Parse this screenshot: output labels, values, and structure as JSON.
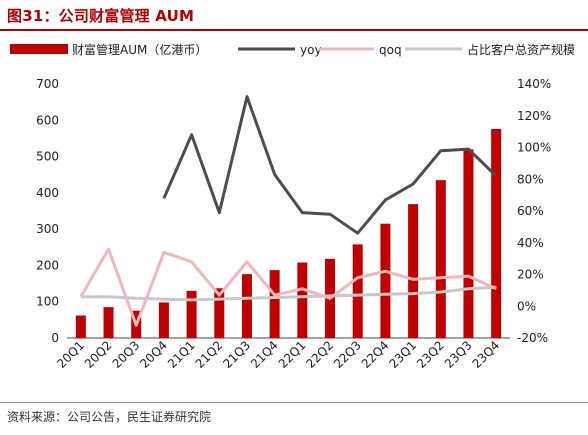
{
  "header": {
    "title": "图31：公司财富管理 AUM"
  },
  "footer": {
    "source": "资料来源：公司公告，民生证券研究院"
  },
  "colors": {
    "brand": "#b30000",
    "bar": "#c00000",
    "yoy": "#4d4d4d",
    "qoq": "#f4b6b6",
    "share": "#c8c8c8"
  },
  "chart_data": {
    "type": "bar",
    "categories": [
      "20Q1",
      "20Q2",
      "20Q3",
      "20Q4",
      "21Q1",
      "21Q2",
      "21Q3",
      "21Q4",
      "22Q1",
      "22Q2",
      "22Q3",
      "22Q4",
      "23Q1",
      "23Q2",
      "23Q3",
      "23Q4"
    ],
    "series": [
      {
        "name": "财富管理AUM（亿港币）",
        "type": "bar",
        "axis": "left",
        "values": [
          62,
          85,
          75,
          98,
          130,
          137,
          176,
          187,
          208,
          218,
          258,
          315,
          369,
          435,
          520,
          576
        ]
      },
      {
        "name": "yoy",
        "type": "line",
        "axis": "right",
        "values": [
          null,
          null,
          null,
          68,
          108,
          59,
          132,
          83,
          59,
          58,
          46,
          67,
          77,
          98,
          99,
          82
        ]
      },
      {
        "name": "qoq",
        "type": "line",
        "axis": "right",
        "values": [
          6,
          36,
          -12,
          34,
          28,
          7,
          28,
          7,
          11,
          5,
          18,
          22,
          17,
          18,
          19,
          11
        ]
      },
      {
        "name": "占比客户总资产规模",
        "type": "line",
        "axis": "right",
        "values": [
          6,
          6,
          5,
          4.5,
          4,
          4.5,
          5,
          5.5,
          6,
          6.5,
          7,
          7.5,
          8,
          9,
          11,
          12
        ]
      }
    ],
    "ylim_left": [
      0,
      700
    ],
    "yticks_left": [
      "0",
      "100",
      "200",
      "300",
      "400",
      "500",
      "600",
      "700"
    ],
    "ylim_right": [
      -20,
      140
    ],
    "yticks_right": [
      "-20%",
      "0%",
      "20%",
      "40%",
      "60%",
      "80%",
      "100%",
      "120%",
      "140%"
    ],
    "legend_position": "top",
    "grid": false
  }
}
